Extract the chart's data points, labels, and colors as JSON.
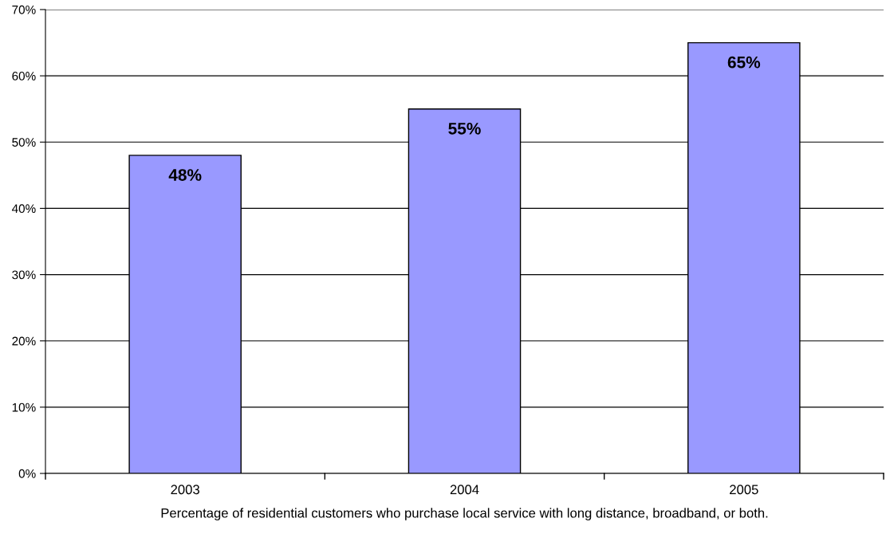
{
  "chart_data": {
    "type": "bar",
    "xlabel": "Percentage of residential customers who purchase local service with long distance, broadband, or both.",
    "categories": [
      "2003",
      "2004",
      "2005"
    ],
    "values": [
      48,
      55,
      65
    ],
    "value_labels": [
      "48%",
      "55%",
      "65%"
    ],
    "color": "#9999ff",
    "ylim": [
      0,
      70
    ],
    "yticks": [
      {
        "value": 0,
        "label": "0%"
      },
      {
        "value": 10,
        "label": "10%"
      },
      {
        "value": 20,
        "label": "20%"
      },
      {
        "value": 30,
        "label": "30%"
      },
      {
        "value": 40,
        "label": "40%"
      },
      {
        "value": 50,
        "label": "50%"
      },
      {
        "value": 60,
        "label": "60%"
      },
      {
        "value": 70,
        "label": "70%"
      }
    ],
    "grid": "y"
  }
}
